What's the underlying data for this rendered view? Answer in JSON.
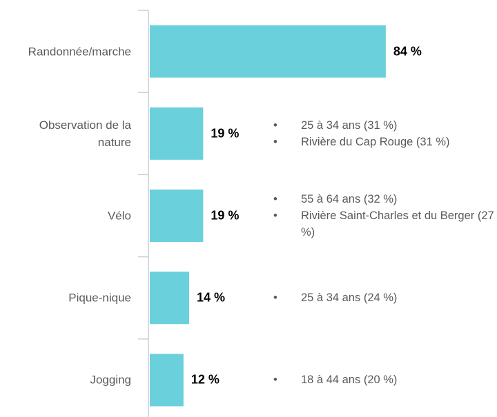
{
  "chart_data": {
    "type": "bar",
    "orientation": "horizontal",
    "categories": [
      "Randonnée/marche",
      "Observation de la nature",
      "Vélo",
      "Pique-nique",
      "Jogging"
    ],
    "values": [
      84,
      19,
      19,
      14,
      12
    ],
    "value_labels": [
      "84 %",
      "19 %",
      "19 %",
      "14 %",
      "12 %"
    ],
    "color": "#6ad0dc",
    "annotations": [
      [],
      [
        "25 à 34 ans (31 %)",
        "Rivière du Cap Rouge (31 %)"
      ],
      [
        "55 à 64 ans (32 %)",
        "Rivière Saint-Charles et du Berger (27 %)"
      ],
      [
        "25 à 34 ans (24 %)"
      ],
      [
        "18 à 44 ans (20 %)"
      ]
    ]
  }
}
